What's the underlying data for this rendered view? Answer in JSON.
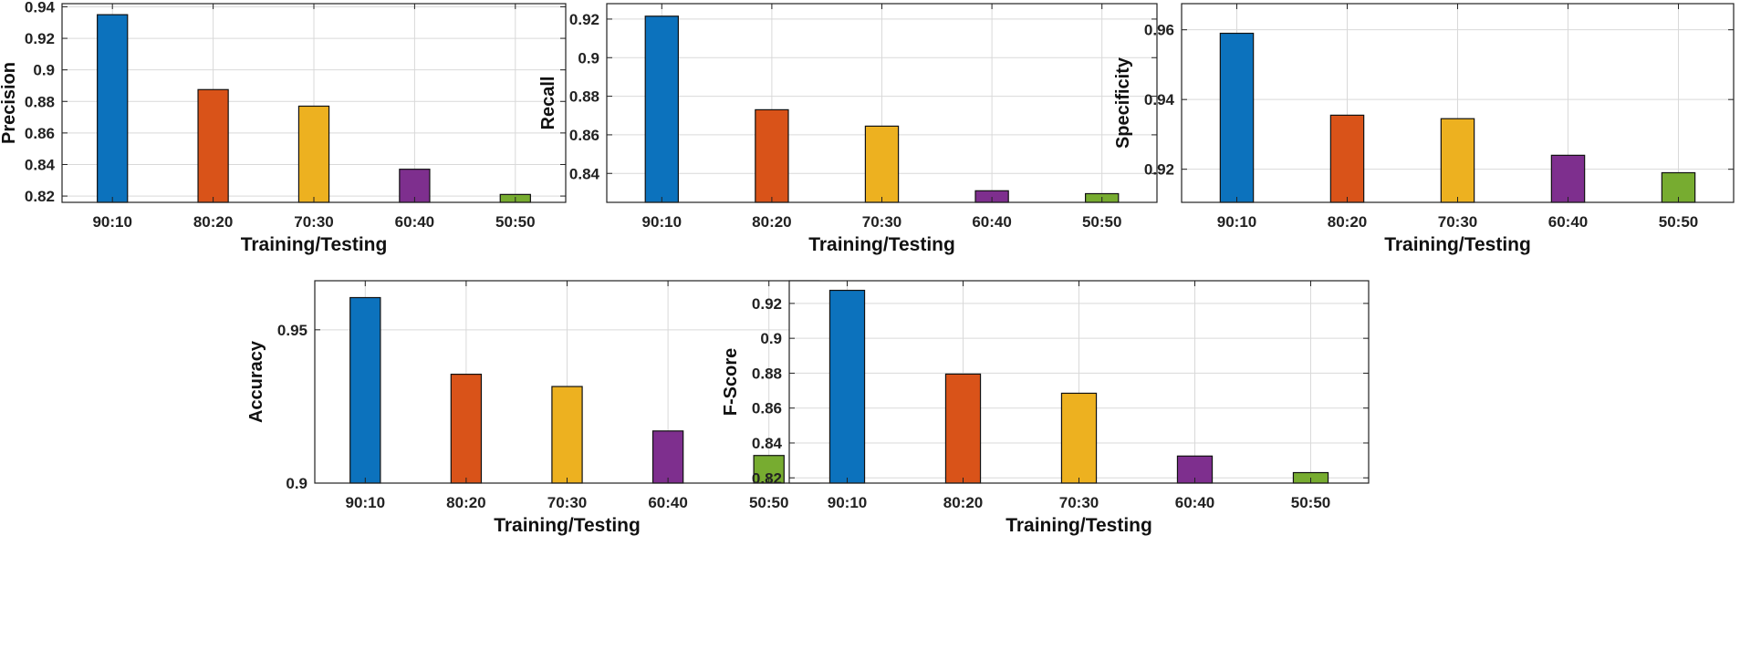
{
  "colors": {
    "blue": "#0c72bd",
    "orange": "#d95319",
    "yellow": "#edb120",
    "purple": "#7e2f8e",
    "green": "#77ac30",
    "grid": "#d9d9d9",
    "axis": "#222222"
  },
  "chart_data": [
    {
      "type": "bar",
      "title": "",
      "categories": [
        "90:10",
        "80:20",
        "70:30",
        "60:40",
        "50:50"
      ],
      "values": [
        0.935,
        0.8875,
        0.877,
        0.837,
        0.821
      ],
      "xlabel": "Training/Testing",
      "ylabel": "Precision",
      "ylim": [
        0.816,
        0.942
      ],
      "yticks": [
        0.82,
        0.84,
        0.86,
        0.88,
        0.9,
        0.92,
        0.94
      ],
      "ytick_labels": [
        "0.82",
        "0.84",
        "0.86",
        "0.88",
        "0.9",
        "0.92",
        "0.94"
      ],
      "grid": true
    },
    {
      "type": "bar",
      "title": "",
      "categories": [
        "90:10",
        "80:20",
        "70:30",
        "60:40",
        "50:50"
      ],
      "values": [
        0.9215,
        0.873,
        0.8645,
        0.831,
        0.8295
      ],
      "xlabel": "Training/Testing",
      "ylabel": "Recall",
      "ylim": [
        0.825,
        0.928
      ],
      "yticks": [
        0.84,
        0.86,
        0.88,
        0.9,
        0.92
      ],
      "ytick_labels": [
        "0.84",
        "0.86",
        "0.88",
        "0.9",
        "0.92"
      ],
      "grid": true
    },
    {
      "type": "bar",
      "title": "",
      "categories": [
        "90:10",
        "80:20",
        "70:30",
        "60:40",
        "50:50"
      ],
      "values": [
        0.959,
        0.9355,
        0.9345,
        0.924,
        0.919
      ],
      "xlabel": "Training/Testing",
      "ylabel": "Specificity",
      "ylim": [
        0.9105,
        0.9675
      ],
      "yticks": [
        0.92,
        0.94,
        0.96
      ],
      "ytick_labels": [
        "0.92",
        "0.94",
        "0.96"
      ],
      "grid": true
    },
    {
      "type": "bar",
      "title": "",
      "categories": [
        "90:10",
        "80:20",
        "70:30",
        "60:40",
        "50:50"
      ],
      "values": [
        0.9605,
        0.9355,
        0.9315,
        0.917,
        0.909
      ],
      "xlabel": "Training/Testing",
      "ylabel": "Accuracy",
      "ylim": [
        0.9,
        0.966
      ],
      "yticks": [
        0.9,
        0.95
      ],
      "ytick_labels": [
        "0.9",
        "0.95"
      ],
      "grid": true
    },
    {
      "type": "bar",
      "title": "",
      "categories": [
        "90:10",
        "80:20",
        "70:30",
        "60:40",
        "50:50"
      ],
      "values": [
        0.9275,
        0.8795,
        0.8685,
        0.8325,
        0.823
      ],
      "xlabel": "Training/Testing",
      "ylabel": "F-Score",
      "ylim": [
        0.817,
        0.933
      ],
      "yticks": [
        0.82,
        0.84,
        0.86,
        0.88,
        0.9,
        0.92
      ],
      "ytick_labels": [
        "0.82",
        "0.84",
        "0.86",
        "0.88",
        "0.9",
        "0.92"
      ],
      "grid": true
    }
  ]
}
